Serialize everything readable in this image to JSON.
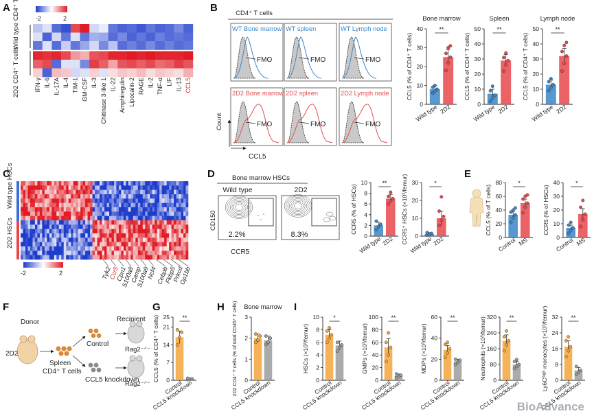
{
  "panels": {
    "A": "A",
    "B": "B",
    "C": "C",
    "D": "D",
    "E": "E",
    "F": "F",
    "G": "G",
    "H": "H",
    "I": "I"
  },
  "colors": {
    "red": "#e8474c",
    "blue": "#3a86c8",
    "orange": "#f5a43a",
    "gray": "#9c9c9c",
    "heat_high": "#e01b24",
    "heat_low": "#1e3ccc"
  },
  "panel_a": {
    "legend_min": "-2",
    "legend_max": "2",
    "row_groups": [
      "Wild type CD4⁺ T cells",
      "2D2 CD4⁺ T cells"
    ],
    "columns": [
      "IFN-γ",
      "IL-6",
      "IL-17A",
      "IL-4",
      "TIM-1",
      "GM-CSF",
      "IL-3",
      "Chitinase 3-like 1",
      "IL-22",
      "Amphiregulin",
      "Lipocalin-2",
      "RAGE",
      "IL-2",
      "TNF-α",
      "LIF",
      "IL-13",
      "CCL5"
    ],
    "highlight_column": "CCL5",
    "matrix": [
      [
        -0.6,
        -0.3,
        -1.5,
        -1.8,
        1.6,
        2,
        -0.4,
        -0.2,
        -1.4,
        -1.6,
        -1.5,
        -1.7,
        -1.4,
        -1.6,
        -1.5,
        -1.2,
        -1.6
      ],
      [
        -0.3,
        -1.6,
        -0.4,
        -1.4,
        -0.3,
        -1.4,
        -0.8,
        -0.9,
        -1.5,
        -1.2,
        -1.6,
        -1.4,
        -1.6,
        -1.3,
        -1.5,
        -1.4,
        -1.5
      ],
      [
        -1.4,
        -0.3,
        -1.5,
        -0.5,
        -1.4,
        -0.9,
        -0.4,
        -1.2,
        -0.6,
        -1.5,
        -1.3,
        -1.5,
        -1.2,
        -1.5,
        -1.3,
        -1.5,
        -1.4
      ],
      [
        1.9,
        1.8,
        1.9,
        1.6,
        0.9,
        0.7,
        1.5,
        1.6,
        1.9,
        1.9,
        2,
        1.9,
        2,
        1.9,
        1.9,
        1.9,
        2
      ],
      [
        1.4,
        1.6,
        -1.5,
        -0.3,
        -0.3,
        -1.2,
        1.7,
        1.4,
        0.8,
        1.5,
        1.6,
        1.4,
        1.6,
        1.3,
        1.4,
        1.7,
        1.5
      ],
      [
        0.4,
        -1.6,
        0.6,
        0.5,
        -0.4,
        -0.3,
        0.4,
        -0.3,
        0.3,
        0.5,
        0.4,
        0.6,
        0.3,
        0.5,
        0.4,
        0.3,
        0.7
      ]
    ]
  },
  "panel_b": {
    "header": "CD4⁺ T cells",
    "hist_titles": [
      "WT Bone marrow",
      "WT spleen",
      "WT Lymph node",
      "2D2 Bone marrow",
      "2D2 spleen",
      "2D2 Lymph node"
    ],
    "fmo": "FMO",
    "y_label": "Count",
    "x_label": "CCL5"
  },
  "chart_data": [
    {
      "id": "B1",
      "type": "bar",
      "title": "Bone marrow",
      "ylabel": "CCL5 (% of CD4⁺ T cells)",
      "categories": [
        "Wild type",
        "2D2"
      ],
      "values": [
        8,
        25
      ],
      "errors": [
        2,
        4
      ],
      "ylim": [
        0,
        40
      ],
      "ticks": [
        0,
        10,
        20,
        30,
        40
      ],
      "significance": "**",
      "colors": [
        "blue",
        "red"
      ],
      "points": [
        [
          6,
          7,
          8,
          9,
          10
        ],
        [
          18,
          22,
          25,
          27,
          30,
          31
        ]
      ]
    },
    {
      "id": "B2",
      "type": "bar",
      "title": "Spleen",
      "ylabel": "CCL5 (% of CD4⁺ T cells)",
      "categories": [
        "Wild type",
        "2D2"
      ],
      "values": [
        7,
        29
      ],
      "errors": [
        3,
        4
      ],
      "ylim": [
        0,
        50
      ],
      "ticks": [
        0,
        10,
        20,
        30,
        40,
        50
      ],
      "significance": "**",
      "colors": [
        "blue",
        "red"
      ],
      "points": [
        [
          2,
          4,
          6,
          9,
          12
        ],
        [
          22,
          26,
          29,
          31,
          34
        ]
      ]
    },
    {
      "id": "B3",
      "type": "bar",
      "title": "Lymph node",
      "ylabel": "CCL5 (% of CD4⁺ T cells)",
      "categories": [
        "Wild type",
        "2D2"
      ],
      "values": [
        13,
        32
      ],
      "errors": [
        3,
        5
      ],
      "ylim": [
        0,
        50
      ],
      "ticks": [
        0,
        10,
        20,
        30,
        40,
        50
      ],
      "significance": "**",
      "colors": [
        "blue",
        "red"
      ],
      "points": [
        [
          9,
          11,
          13,
          15,
          17
        ],
        [
          22,
          27,
          32,
          35,
          39,
          41
        ]
      ]
    },
    {
      "id": "D1",
      "type": "bar",
      "title": "",
      "ylabel": "CCR5 (% of HSCs)",
      "categories": [
        "Wild type",
        "2D2"
      ],
      "values": [
        2,
        7
      ],
      "errors": [
        0.6,
        0.8
      ],
      "ylim": [
        0,
        10
      ],
      "ticks": [
        0,
        2,
        4,
        6,
        8,
        10
      ],
      "significance": "**",
      "colors": [
        "blue",
        "red"
      ],
      "points": [
        [
          1.2,
          1.8,
          2.2,
          2.8
        ],
        [
          6,
          6.6,
          7,
          7.4,
          8.2
        ]
      ]
    },
    {
      "id": "D2",
      "type": "bar",
      "title": "",
      "ylabel": "CCR5⁺ HSCs (×10³/femur)",
      "categories": [
        "Wild type",
        "2D2"
      ],
      "values": [
        1.2,
        10
      ],
      "errors": [
        0.8,
        4
      ],
      "ylim": [
        0,
        30
      ],
      "ticks": [
        0,
        10,
        20,
        30
      ],
      "significance": "*",
      "colors": [
        "blue",
        "red"
      ],
      "points": [
        [
          0.5,
          1,
          1.5,
          2
        ],
        [
          6,
          9,
          11,
          14,
          22
        ]
      ]
    },
    {
      "id": "E1",
      "type": "bar",
      "title": "",
      "ylabel": "CCL5 (% of T cells)",
      "categories": [
        "Control",
        "MS"
      ],
      "values": [
        33,
        50
      ],
      "errors": [
        5,
        6
      ],
      "ylim": [
        0,
        80
      ],
      "ticks": [
        0,
        20,
        40,
        60,
        80
      ],
      "significance": "*",
      "colors": [
        "blue",
        "red"
      ],
      "points": [
        [
          22,
          28,
          33,
          37,
          40,
          43
        ],
        [
          36,
          44,
          50,
          56,
          60,
          62
        ]
      ]
    },
    {
      "id": "E2",
      "type": "bar",
      "title": "",
      "ylabel": "CCR5 (% of HSCs)",
      "categories": [
        "Control",
        "MS"
      ],
      "values": [
        7,
        17
      ],
      "errors": [
        2,
        4
      ],
      "ylim": [
        0,
        40
      ],
      "ticks": [
        0,
        10,
        20,
        30,
        40
      ],
      "significance": "*",
      "colors": [
        "blue",
        "red"
      ],
      "points": [
        [
          3,
          5,
          7,
          9,
          11
        ],
        [
          8,
          13,
          17,
          22,
          27
        ]
      ]
    },
    {
      "id": "G",
      "type": "bar",
      "title": "",
      "ylabel": "CCL5 (% of CD4⁺ T cells)",
      "categories": [
        "Control",
        "CCL5 knockdown"
      ],
      "values": [
        17,
        0.5
      ],
      "errors": [
        2.5,
        0.3
      ],
      "ylim": [
        0,
        25
      ],
      "ticks": [
        0,
        7,
        14,
        21,
        25
      ],
      "significance": "**",
      "colors": [
        "orange",
        "gray"
      ],
      "points": [
        [
          14,
          17,
          19,
          20
        ],
        [
          0.2,
          0.4,
          0.6,
          0.8
        ]
      ]
    },
    {
      "id": "H",
      "type": "bar",
      "title": "Bone marrow",
      "ylabel": "2D2 CD4⁺ T cells (% of total CD45⁺ T cells)",
      "categories": [
        "Control",
        "CCL5 knockdown"
      ],
      "values": [
        2.0,
        1.9
      ],
      "errors": [
        0.2,
        0.2
      ],
      "ylim": [
        0,
        3
      ],
      "ticks": [
        0,
        1,
        2,
        3
      ],
      "significance": "",
      "colors": [
        "orange",
        "gray"
      ],
      "points": [
        [
          1.8,
          1.9,
          2.1,
          2.2
        ],
        [
          1.7,
          1.8,
          2.0,
          2.1
        ]
      ]
    },
    {
      "id": "I1",
      "type": "bar",
      "title": "",
      "ylabel": "HSCs (×10³/femur)",
      "categories": [
        "Control",
        "CCL5 knockdown"
      ],
      "values": [
        7.2,
        5.5
      ],
      "errors": [
        0.8,
        0.7
      ],
      "ylim": [
        0,
        10
      ],
      "ticks": [
        0,
        2,
        4,
        6,
        8,
        10
      ],
      "significance": "*",
      "colors": [
        "orange",
        "gray"
      ],
      "points": [
        [
          6,
          6.6,
          7.2,
          7.8,
          8.3
        ],
        [
          4.6,
          5.2,
          5.6,
          6
        ]
      ]
    },
    {
      "id": "I2",
      "type": "bar",
      "title": "",
      "ylabel": "GMPs (×10³/femur)",
      "categories": [
        "Control",
        "CCL5 knockdown"
      ],
      "values": [
        52,
        7
      ],
      "errors": [
        14,
        3
      ],
      "ylim": [
        0,
        100
      ],
      "ticks": [
        0,
        20,
        40,
        60,
        80,
        100
      ],
      "significance": "**",
      "colors": [
        "orange",
        "gray"
      ],
      "points": [
        [
          30,
          40,
          52,
          60,
          75
        ],
        [
          4,
          6,
          8,
          10
        ]
      ]
    },
    {
      "id": "I3",
      "type": "bar",
      "title": "",
      "ylabel": "MDPs (×10³/femur)",
      "categories": [
        "Control",
        "CCL5 knockdown"
      ],
      "values": [
        29,
        18
      ],
      "errors": [
        4,
        2
      ],
      "ylim": [
        0,
        60
      ],
      "ticks": [
        0,
        20,
        40,
        60
      ],
      "significance": "**",
      "colors": [
        "orange",
        "gray"
      ],
      "points": [
        [
          22,
          26,
          30,
          34,
          36
        ],
        [
          15,
          17,
          19,
          20
        ]
      ]
    },
    {
      "id": "I4",
      "type": "bar",
      "title": "",
      "ylabel": "Neutrophils (×10³/femur)",
      "categories": [
        "Control",
        "CCL5 knockdown"
      ],
      "values": [
        200,
        80
      ],
      "errors": [
        30,
        15
      ],
      "ylim": [
        0,
        320
      ],
      "ticks": [
        0,
        80,
        160,
        240,
        320
      ],
      "significance": "**",
      "colors": [
        "orange",
        "gray"
      ],
      "points": [
        [
          150,
          180,
          200,
          220,
          250
        ],
        [
          60,
          70,
          80,
          95,
          105
        ]
      ]
    },
    {
      "id": "I5",
      "type": "bar",
      "title": "",
      "ylabel": "Ly6Cʰᶦᵍʰ monocytes (×10³/femur)",
      "categories": [
        "Control",
        "CCL5 knockdown"
      ],
      "values": [
        17,
        5
      ],
      "errors": [
        3,
        1.5
      ],
      "ylim": [
        0,
        32
      ],
      "ticks": [
        0,
        8,
        16,
        24,
        32
      ],
      "significance": "**",
      "colors": [
        "orange",
        "gray"
      ],
      "points": [
        [
          12,
          15,
          17,
          20,
          22
        ],
        [
          3,
          4,
          5,
          7
        ]
      ]
    }
  ],
  "panel_c": {
    "legend_min": "-2",
    "legend_max": "2",
    "row_groups": [
      "Wild type HSCs",
      "2D2 HSCs"
    ],
    "genes": [
      "Tyk2",
      "Ccr5",
      "Cpn1",
      "S100a8",
      "Camp",
      "S100a9",
      "Ncf4",
      "Cebpb",
      "Fkbp5",
      "Prkcd",
      "Gp1bb"
    ],
    "highlight_gene": "Ccr5"
  },
  "panel_d": {
    "header": "Bone marrow HSCs",
    "plots": [
      {
        "title": "Wild type",
        "gate_value": "2.2%"
      },
      {
        "title": "2D2",
        "gate_value": "8.3%"
      }
    ],
    "y_label": "CD150",
    "x_label": "CCR5"
  },
  "panel_f": {
    "donor": "Donor",
    "donor_mouse": "2D2",
    "spleen": "Spleen",
    "cells": "CD4⁺ T cells",
    "recipient": "Recipient",
    "control": "Control",
    "knockdown": "CCL5 knockdown",
    "rag": "Rag2⁻ᐟ⁻"
  },
  "watermark": "BioAdvance"
}
